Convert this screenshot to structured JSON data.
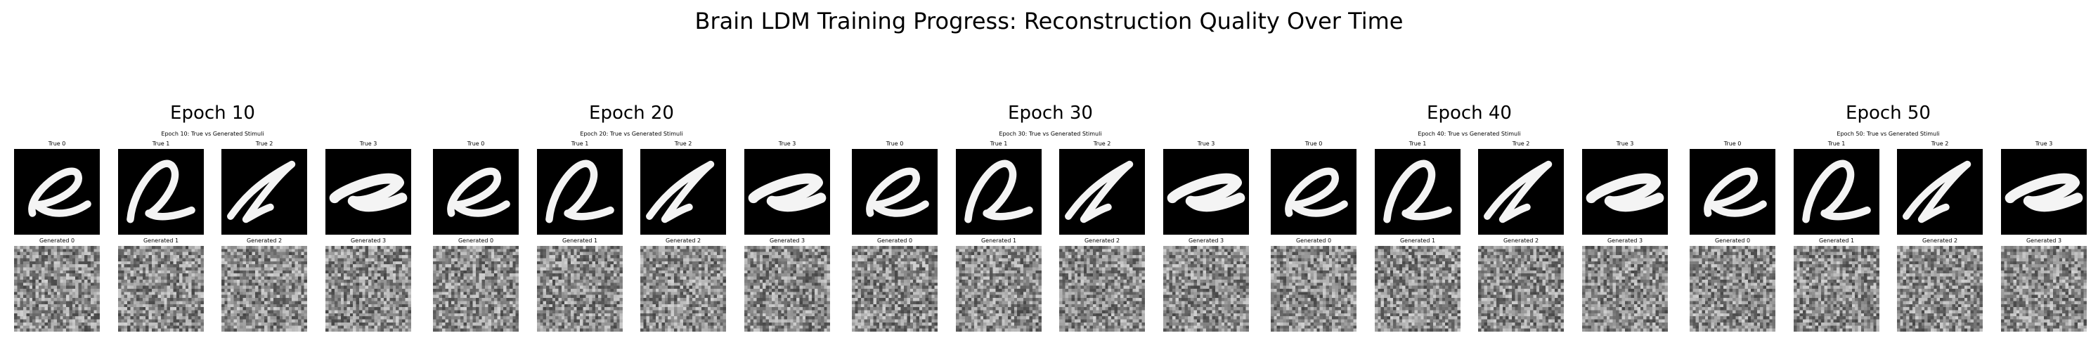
{
  "title": "Brain LDM Training Progress: Reconstruction Quality Over Time",
  "epochs": [
    {
      "title": "Epoch 10",
      "subtitle": "Epoch 10: True vs Generated Stimuli",
      "true_labels": [
        "True 0",
        "True 1",
        "True 2",
        "True 3"
      ],
      "generated_labels": [
        "Generated 0",
        "Generated 1",
        "Generated 2",
        "Generated 3"
      ]
    },
    {
      "title": "Epoch 20",
      "subtitle": "Epoch 20: True vs Generated Stimuli",
      "true_labels": [
        "True 0",
        "True 1",
        "True 2",
        "True 3"
      ],
      "generated_labels": [
        "Generated 0",
        "Generated 1",
        "Generated 2",
        "Generated 3"
      ]
    },
    {
      "title": "Epoch 30",
      "subtitle": "Epoch 30: True vs Generated Stimuli",
      "true_labels": [
        "True 0",
        "True 1",
        "True 2",
        "True 3"
      ],
      "generated_labels": [
        "Generated 0",
        "Generated 1",
        "Generated 2",
        "Generated 3"
      ]
    },
    {
      "title": "Epoch 40",
      "subtitle": "Epoch 40: True vs Generated Stimuli",
      "true_labels": [
        "True 0",
        "True 1",
        "True 2",
        "True 3"
      ],
      "generated_labels": [
        "Generated 0",
        "Generated 1",
        "Generated 2",
        "Generated 3"
      ]
    },
    {
      "title": "Epoch 50",
      "subtitle": "Epoch 50: True vs Generated Stimuli",
      "true_labels": [
        "True 0",
        "True 1",
        "True 2",
        "True 3"
      ],
      "generated_labels": [
        "Generated 0",
        "Generated 1",
        "Generated 2",
        "Generated 3"
      ]
    }
  ]
}
